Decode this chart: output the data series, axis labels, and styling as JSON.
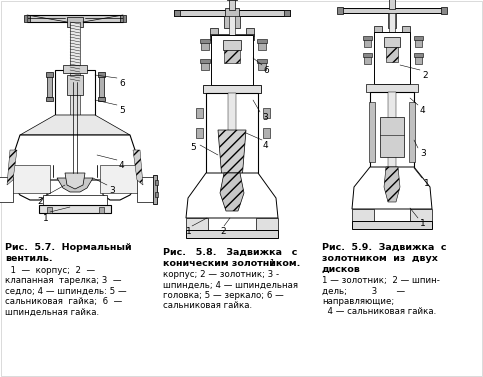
{
  "background_color": "#ffffff",
  "fig_width": 4.83,
  "fig_height": 3.77,
  "dpi": 100,
  "text_color": "#000000",
  "caption1_line1": "Рис.  5.7.  Нормальный",
  "caption1_line2": "вентиль.",
  "caption1_body": "  1  —  корпус;  2  —\nклапанная  тарелка; 3  —\nседло; 4 — шпиндель: 5 —\nсальниковая  гайка;  6  —\nшпиндельная гайка.",
  "caption2_line1": "Рис.   5.8.   Задвижка   с",
  "caption2_line2": "коническим золотником.",
  "caption2_suffix": " 1 -",
  "caption2_body": "корпус; 2 — золотник; 3 -\nшпиндель; 4 — шпиндельная\nголовка; 5 — зеркало; 6 —\nсальниковая гайка.",
  "caption3_line1": "Рис.  5.9.  Задвижка  с",
  "caption3_line2": "золотником  из  двух",
  "caption3_line3": "дисков",
  "caption3_body": "1 — золотник;  2 — шпин-\nдель;         3       —\nнаправляющие;\n  4 — сальниковая гайка."
}
